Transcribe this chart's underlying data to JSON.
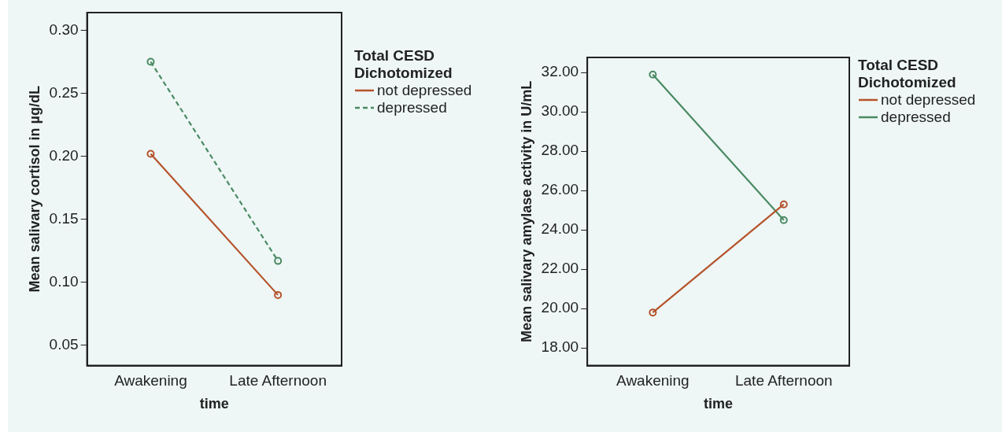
{
  "chart_data": [
    {
      "type": "line",
      "xlabel": "time",
      "ylabel": "Mean salivary cortisol in µg/dL",
      "legend_title": "Total CESD Dichotomized",
      "categories": [
        "Awakening",
        "Late Afternoon"
      ],
      "ylim": [
        0.034,
        0.314
      ],
      "yticks": [
        {
          "value": 0.05,
          "label": "0.05"
        },
        {
          "value": 0.1,
          "label": "0.10"
        },
        {
          "value": 0.15,
          "label": "0.15"
        },
        {
          "value": 0.2,
          "label": "0.20"
        },
        {
          "value": 0.25,
          "label": "0.25"
        },
        {
          "value": 0.3,
          "label": "0.30"
        }
      ],
      "legend": "right",
      "marker": "circle",
      "grid": false,
      "series": [
        {
          "name": "not depressed",
          "color": "#b5532a",
          "values": [
            0.202,
            0.09
          ],
          "line_style": "solid"
        },
        {
          "name": "depressed",
          "color": "#4a8a62",
          "values": [
            0.275,
            0.117
          ],
          "line_style": "dashed"
        }
      ]
    },
    {
      "type": "line",
      "xlabel": "time",
      "ylabel": "Mean salivary amylase activity in U/mL",
      "legend_title": "Total CESD Dichotomized",
      "categories": [
        "Awakening",
        "Late Afternoon"
      ],
      "ylim": [
        17.1,
        32.77
      ],
      "yticks": [
        {
          "value": 18,
          "label": "18.00"
        },
        {
          "value": 20,
          "label": "20.00"
        },
        {
          "value": 22,
          "label": "22.00"
        },
        {
          "value": 24,
          "label": "24.00"
        },
        {
          "value": 26,
          "label": "26.00"
        },
        {
          "value": 28,
          "label": "28.00"
        },
        {
          "value": 30,
          "label": "30.00"
        },
        {
          "value": 32,
          "label": "32.00"
        }
      ],
      "legend": "right",
      "marker": "circle",
      "grid": false,
      "series": [
        {
          "name": "not depressed",
          "color": "#b5532a",
          "values": [
            19.8,
            25.3
          ],
          "line_style": "solid"
        },
        {
          "name": "depressed",
          "color": "#4a8a62",
          "values": [
            31.9,
            24.5
          ],
          "line_style": "solid"
        }
      ]
    }
  ]
}
